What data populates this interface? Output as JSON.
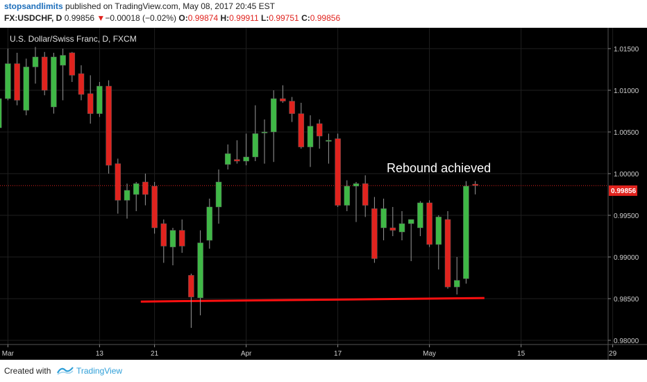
{
  "header": {
    "author": "stopsandlimits",
    "published_text": "published on TradingView.com, May 08, 2017 20:45 EST",
    "symbol": "FX:USDCHF, D",
    "price": "0.99856",
    "change_arrow": "▼",
    "change": "−0.00018 (−0.02%)",
    "o_label": "O:",
    "o_value": "0.99874",
    "h_label": "H:",
    "h_value": "0.99911",
    "l_label": "L:",
    "l_value": "0.99751",
    "c_label": "C:",
    "c_value": "0.99856"
  },
  "footer": {
    "created_with": "Created with",
    "brand": "TradingView"
  },
  "chart_data": {
    "type": "candlestick",
    "title": "U.S. Dollar/Swiss Franc, D, FXCM",
    "annotation": "Rebound achieved",
    "last_price_label": "0.99856",
    "last_price": 0.99856,
    "ylim": [
      0.9795,
      1.0175
    ],
    "y_ticks": [
      1.015,
      1.01,
      1.005,
      1.0,
      0.995,
      0.99,
      0.985,
      0.98
    ],
    "y_tick_labels": [
      "1.01500",
      "1.01000",
      "1.00500",
      "1.00000",
      "0.99500",
      "0.99000",
      "0.98500",
      "0.98000"
    ],
    "x_tick_labels": [
      "Mar",
      "13",
      "21",
      "Apr",
      "17",
      "May",
      "15",
      "29"
    ],
    "x_tick_days": [
      4.5,
      14.5,
      20.5,
      30.5,
      40.5,
      50.5,
      60.5,
      70.5
    ],
    "x_range_days": [
      0,
      73
    ],
    "support_line": {
      "day_start": 19,
      "day_end": 56.5,
      "price_start": 0.98465,
      "price_end": 0.98507
    },
    "candles": [
      {
        "day": 0.5,
        "o": 1.0058,
        "h": 1.0095,
        "l": 1.0035,
        "c": 1.0068
      },
      {
        "day": 1.5,
        "o": 1.0058,
        "h": 1.0112,
        "l": 1.005,
        "c": 1.0093
      },
      {
        "day": 2.5,
        "o": 1.0093,
        "h": 1.0105,
        "l": 1.0045,
        "c": 1.0055
      },
      {
        "day": 3.5,
        "o": 1.0055,
        "h": 1.0098,
        "l": 1.005,
        "c": 1.009
      },
      {
        "day": 4.5,
        "o": 1.009,
        "h": 1.015,
        "l": 1.0088,
        "c": 1.0132
      },
      {
        "day": 5.5,
        "o": 1.0132,
        "h": 1.0145,
        "l": 1.0082,
        "c": 1.0088
      },
      {
        "day": 6.5,
        "o": 1.0076,
        "h": 1.0138,
        "l": 1.007,
        "c": 1.0128
      },
      {
        "day": 7.5,
        "o": 1.0128,
        "h": 1.0152,
        "l": 1.0108,
        "c": 1.014
      },
      {
        "day": 8.5,
        "o": 1.014,
        "h": 1.0146,
        "l": 1.0094,
        "c": 1.01
      },
      {
        "day": 9.5,
        "o": 1.008,
        "h": 1.0145,
        "l": 1.0072,
        "c": 1.014
      },
      {
        "day": 10.5,
        "o": 1.013,
        "h": 1.015,
        "l": 1.0088,
        "c": 1.0142
      },
      {
        "day": 11.5,
        "o": 1.0145,
        "h": 1.0146,
        "l": 1.011,
        "c": 1.0118
      },
      {
        "day": 12.5,
        "o": 1.012,
        "h": 1.013,
        "l": 1.0088,
        "c": 1.0095
      },
      {
        "day": 13.5,
        "o": 1.0096,
        "h": 1.0118,
        "l": 1.006,
        "c": 1.0072
      },
      {
        "day": 14.5,
        "o": 1.0072,
        "h": 1.011,
        "l": 1.0068,
        "c": 1.0105
      },
      {
        "day": 15.5,
        "o": 1.0105,
        "h": 1.0112,
        "l": 1.0,
        "c": 1.001
      },
      {
        "day": 16.5,
        "o": 1.0012,
        "h": 1.0018,
        "l": 0.9952,
        "c": 0.9968
      },
      {
        "day": 17.5,
        "o": 0.9968,
        "h": 0.9988,
        "l": 0.9946,
        "c": 0.998
      },
      {
        "day": 18.5,
        "o": 0.9975,
        "h": 0.999,
        "l": 0.9955,
        "c": 0.9988
      },
      {
        "day": 19.5,
        "o": 0.999,
        "h": 1.0,
        "l": 0.9962,
        "c": 0.9975
      },
      {
        "day": 20.5,
        "o": 0.9985,
        "h": 0.999,
        "l": 0.9928,
        "c": 0.9935
      },
      {
        "day": 21.5,
        "o": 0.994,
        "h": 0.9945,
        "l": 0.9893,
        "c": 0.9913
      },
      {
        "day": 22.5,
        "o": 0.9912,
        "h": 0.9935,
        "l": 0.989,
        "c": 0.9932
      },
      {
        "day": 23.5,
        "o": 0.9932,
        "h": 0.9945,
        "l": 0.9905,
        "c": 0.9913
      },
      {
        "day": 24.5,
        "o": 0.9878,
        "h": 0.988,
        "l": 0.9815,
        "c": 0.9852
      },
      {
        "day": 25.5,
        "o": 0.9851,
        "h": 0.9932,
        "l": 0.983,
        "c": 0.9917
      },
      {
        "day": 26.5,
        "o": 0.992,
        "h": 0.997,
        "l": 0.991,
        "c": 0.996
      },
      {
        "day": 27.5,
        "o": 0.996,
        "h": 1.0005,
        "l": 0.994,
        "c": 0.999
      },
      {
        "day": 28.5,
        "o": 1.0011,
        "h": 1.0035,
        "l": 1.0005,
        "c": 1.0024
      },
      {
        "day": 29.5,
        "o": 1.0017,
        "h": 1.004,
        "l": 1.0012,
        "c": 1.0015
      },
      {
        "day": 30.5,
        "o": 1.0015,
        "h": 1.0048,
        "l": 1.001,
        "c": 1.002
      },
      {
        "day": 31.5,
        "o": 1.002,
        "h": 1.0082,
        "l": 1.0015,
        "c": 1.0048
      },
      {
        "day": 32.5,
        "o": 1.005,
        "h": 1.0065,
        "l": 1.0012,
        "c": 1.005
      },
      {
        "day": 33.5,
        "o": 1.005,
        "h": 1.01,
        "l": 1.0014,
        "c": 1.009
      },
      {
        "day": 34.5,
        "o": 1.009,
        "h": 1.0106,
        "l": 1.0085,
        "c": 1.0087
      },
      {
        "day": 35.5,
        "o": 1.0087,
        "h": 1.0092,
        "l": 1.0062,
        "c": 1.0072
      },
      {
        "day": 36.5,
        "o": 1.0072,
        "h": 1.0085,
        "l": 1.003,
        "c": 1.0032
      },
      {
        "day": 37.5,
        "o": 1.0032,
        "h": 1.007,
        "l": 1.0008,
        "c": 1.0057
      },
      {
        "day": 38.5,
        "o": 1.006,
        "h": 1.0065,
        "l": 1.003,
        "c": 1.0045
      },
      {
        "day": 39.5,
        "o": 1.004,
        "h": 1.0048,
        "l": 1.0012,
        "c": 1.004
      },
      {
        "day": 40.5,
        "o": 1.0042,
        "h": 1.0048,
        "l": 0.996,
        "c": 0.9962
      },
      {
        "day": 41.5,
        "o": 0.9962,
        "h": 0.9992,
        "l": 0.9955,
        "c": 0.9985
      },
      {
        "day": 42.5,
        "o": 0.9985,
        "h": 0.999,
        "l": 0.9942,
        "c": 0.9988
      },
      {
        "day": 43.5,
        "o": 0.9988,
        "h": 0.9998,
        "l": 0.9948,
        "c": 0.9962
      },
      {
        "day": 44.5,
        "o": 0.9958,
        "h": 0.9972,
        "l": 0.9893,
        "c": 0.9898
      },
      {
        "day": 45.5,
        "o": 0.9935,
        "h": 0.997,
        "l": 0.992,
        "c": 0.9958
      },
      {
        "day": 46.5,
        "o": 0.9935,
        "h": 0.996,
        "l": 0.9925,
        "c": 0.9932
      },
      {
        "day": 47.5,
        "o": 0.993,
        "h": 0.9955,
        "l": 0.992,
        "c": 0.994
      },
      {
        "day": 48.5,
        "o": 0.994,
        "h": 0.9945,
        "l": 0.9895,
        "c": 0.9945
      },
      {
        "day": 49.5,
        "o": 0.9935,
        "h": 0.9967,
        "l": 0.9925,
        "c": 0.9965
      },
      {
        "day": 50.5,
        "o": 0.9965,
        "h": 0.9968,
        "l": 0.9912,
        "c": 0.9915
      },
      {
        "day": 51.5,
        "o": 0.9915,
        "h": 0.995,
        "l": 0.9885,
        "c": 0.9948
      },
      {
        "day": 52.5,
        "o": 0.9945,
        "h": 0.9955,
        "l": 0.9862,
        "c": 0.9864
      },
      {
        "day": 53.5,
        "o": 0.9864,
        "h": 0.99,
        "l": 0.9855,
        "c": 0.9872
      },
      {
        "day": 54.5,
        "o": 0.9874,
        "h": 0.9991,
        "l": 0.9868,
        "c": 0.9985
      },
      {
        "day": 55.5,
        "o": 0.99874,
        "h": 0.99911,
        "l": 0.99751,
        "c": 0.99856
      }
    ]
  }
}
